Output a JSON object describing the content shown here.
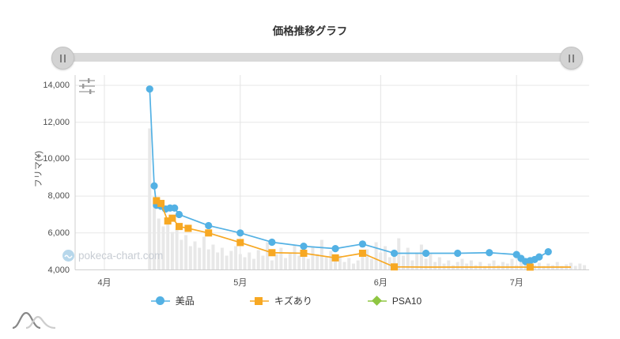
{
  "title": "価格推移グラフ",
  "watermark": {
    "text": "pokeca-chart.com"
  },
  "colors": {
    "blue": "#53b1e4",
    "orange": "#f7a823",
    "green": "#8fc642",
    "bars": "#e8e8e8",
    "grid": "#e7e7e7",
    "axis": "#cfcfcf",
    "slider_track": "#d9d9d9",
    "slider_handle": "#d3d3d3",
    "watermark_text": "#c7ccd3"
  },
  "icons": {
    "slider_grip": "‖",
    "chart_settings": "sliders",
    "watermark_mark": "wave-circle",
    "site_logo": "double-bell-curve"
  },
  "chart_data": {
    "type": "line",
    "title": "価格推移グラフ",
    "ylabel": "フリマ(¥)",
    "ylim": [
      4000,
      14400
    ],
    "grid": true,
    "legend_position": "bottom",
    "x_unit": "days since 4/1",
    "y_axis": {
      "ticks": [
        {
          "value": 14000,
          "label": "14,000"
        },
        {
          "value": 12000,
          "label": "12,000"
        },
        {
          "value": 10000,
          "label": "10,000"
        },
        {
          "value": 8000,
          "label": "8,000"
        },
        {
          "value": 6000,
          "label": "6,000"
        },
        {
          "value": 4000,
          "label": "4,000"
        }
      ]
    },
    "x_axis": {
      "months": [
        {
          "label": "4月",
          "day": 0
        },
        {
          "label": "5月",
          "day": 30
        },
        {
          "label": "6月",
          "day": 61
        },
        {
          "label": "7月",
          "day": 91
        }
      ]
    },
    "series": [
      {
        "name": "美品",
        "color": "#53b1e4",
        "marker": "circle",
        "points": [
          [
            10,
            13800
          ],
          [
            11,
            8550
          ],
          [
            11.5,
            7500
          ],
          [
            12.5,
            7450
          ],
          [
            13.5,
            7300
          ],
          [
            14.5,
            7350
          ],
          [
            15.5,
            7350
          ],
          [
            16.5,
            7000
          ],
          [
            23,
            6400
          ],
          [
            30,
            6000
          ],
          [
            37,
            5500
          ],
          [
            44,
            5280
          ],
          [
            51,
            5150
          ],
          [
            57,
            5400
          ],
          [
            64,
            4900
          ],
          [
            71,
            4900
          ],
          [
            78,
            4900
          ],
          [
            85,
            4930
          ],
          [
            91,
            4830
          ],
          [
            92,
            4620
          ],
          [
            93,
            4450
          ],
          [
            94,
            4500
          ],
          [
            95,
            4560
          ],
          [
            96,
            4700
          ],
          [
            98,
            4980
          ]
        ]
      },
      {
        "name": "キズあり",
        "color": "#f7a823",
        "marker": "square",
        "points": [
          [
            11.5,
            7750
          ],
          [
            12.5,
            7600
          ],
          [
            14,
            6650
          ],
          [
            15,
            6800
          ],
          [
            16.5,
            6350
          ],
          [
            18.5,
            6250
          ],
          [
            23,
            6000
          ],
          [
            30,
            5480
          ],
          [
            37,
            4930
          ],
          [
            44,
            4900
          ],
          [
            51,
            4650
          ],
          [
            57,
            4900
          ],
          [
            64,
            4160
          ],
          [
            71,
            4150,
            0
          ],
          [
            78,
            4150,
            0
          ],
          [
            85,
            4150,
            0
          ],
          [
            94,
            4150
          ],
          [
            103,
            4150,
            0
          ]
        ]
      },
      {
        "name": "PSA10",
        "color": "#8fc642",
        "marker": "diamond",
        "points": []
      }
    ],
    "volume_bars": {
      "note": "unlabeled background volume bars, heights in px above 4000-baseline",
      "color": "#e8e8e8",
      "start_day": 10,
      "heights": [
        179,
        91,
        65,
        55,
        60,
        48,
        52,
        38,
        44,
        30,
        36,
        28,
        42,
        26,
        32,
        22,
        28,
        18,
        24,
        30,
        20,
        16,
        22,
        14,
        25,
        18,
        35,
        12,
        20,
        28,
        15,
        22,
        32,
        18,
        26,
        14,
        30,
        20,
        38,
        16,
        24,
        12,
        18,
        10,
        15,
        8,
        12,
        20,
        26,
        14,
        35,
        22,
        30,
        16,
        24,
        40,
        18,
        28,
        12,
        22,
        32,
        14,
        20,
        10,
        16,
        8,
        12,
        6,
        10,
        14,
        8,
        12,
        6,
        10,
        5,
        8,
        12,
        6,
        10,
        8,
        14,
        6,
        10,
        8,
        12,
        6,
        9,
        5,
        8,
        6,
        10,
        5,
        7,
        9,
        5,
        8,
        6
      ]
    }
  }
}
